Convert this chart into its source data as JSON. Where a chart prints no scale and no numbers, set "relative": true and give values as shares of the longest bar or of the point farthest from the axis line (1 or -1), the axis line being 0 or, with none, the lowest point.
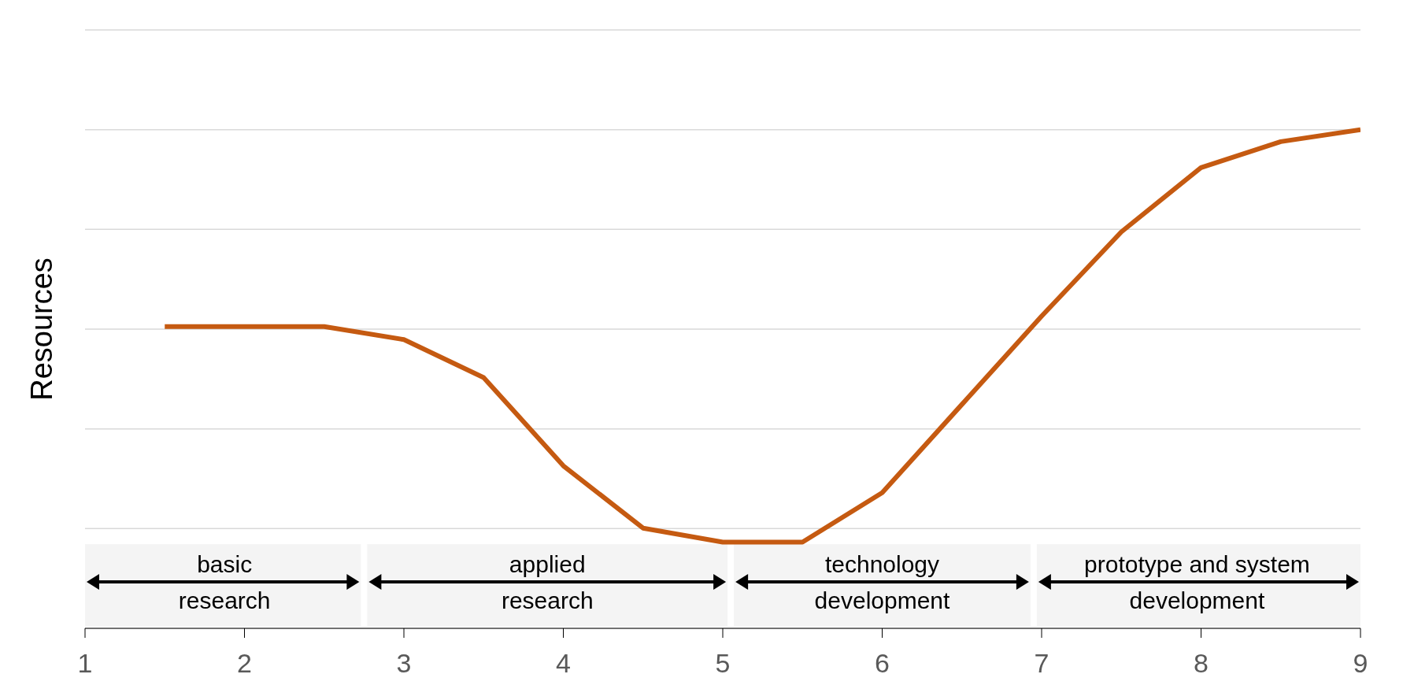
{
  "chart_data": {
    "type": "line",
    "ylabel": "Resources",
    "relative": true,
    "x": [
      1.5,
      2.5,
      3,
      3.5,
      4,
      4.5,
      5,
      5.5,
      6,
      6.5,
      7,
      7.5,
      8,
      8.5,
      9
    ],
    "series": [
      {
        "color": "#c55a11",
        "values": [
          0.605,
          0.605,
          0.579,
          0.503,
          0.326,
          0.201,
          0.173,
          0.173,
          0.272,
          0.449,
          0.626,
          0.795,
          0.924,
          0.976,
          1
        ]
      }
    ],
    "xlim": [
      1,
      9
    ],
    "xticks": [
      1,
      2,
      3,
      4,
      5,
      6,
      7,
      8,
      9
    ],
    "grid": "y",
    "legend": false,
    "marker": "none",
    "line_style": "solid",
    "bands": [
      {
        "axis": "x",
        "from": 1,
        "to": 2.75,
        "label": "basic research"
      },
      {
        "axis": "x",
        "from": 2.75,
        "to": 5.05,
        "label": "applied research"
      },
      {
        "axis": "x",
        "from": 5.05,
        "to": 6.95,
        "label": "technology development"
      },
      {
        "axis": "x",
        "from": 6.95,
        "to": 9,
        "label": "prototype and system development"
      }
    ]
  }
}
